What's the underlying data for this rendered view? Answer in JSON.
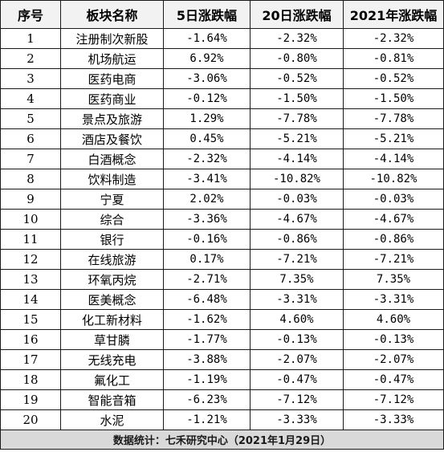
{
  "table": {
    "headers": [
      "序号",
      "板块名称",
      "5日涨跌幅",
      "20日涨跌幅",
      "2021年涨跌幅"
    ],
    "rows": [
      [
        "1",
        "注册制次新股",
        "-1.64%",
        "-2.32%",
        "-2.32%"
      ],
      [
        "2",
        "机场航运",
        "6.92%",
        "-0.80%",
        "-0.81%"
      ],
      [
        "3",
        "医药电商",
        "-3.06%",
        "-0.52%",
        "-0.52%"
      ],
      [
        "4",
        "医药商业",
        "-0.12%",
        "-1.50%",
        "-1.50%"
      ],
      [
        "5",
        "景点及旅游",
        "1.29%",
        "-7.78%",
        "-7.78%"
      ],
      [
        "6",
        "酒店及餐饮",
        "0.45%",
        "-5.21%",
        "-5.21%"
      ],
      [
        "7",
        "白酒概念",
        "-2.32%",
        "-4.14%",
        "-4.14%"
      ],
      [
        "8",
        "饮料制造",
        "-3.41%",
        "-10.82%",
        "-10.82%"
      ],
      [
        "9",
        "宁夏",
        "2.02%",
        "-0.03%",
        "-0.03%"
      ],
      [
        "10",
        "综合",
        "-3.36%",
        "-4.67%",
        "-4.67%"
      ],
      [
        "11",
        "银行",
        "-0.16%",
        "-0.86%",
        "-0.86%"
      ],
      [
        "12",
        "在线旅游",
        "0.17%",
        "-7.21%",
        "-7.21%"
      ],
      [
        "13",
        "环氧丙烷",
        "-2.71%",
        "7.35%",
        "7.35%"
      ],
      [
        "14",
        "医美概念",
        "-6.48%",
        "-3.31%",
        "-3.31%"
      ],
      [
        "15",
        "化工新材料",
        "-1.62%",
        "4.60%",
        "4.60%"
      ],
      [
        "16",
        "草甘膦",
        "-1.77%",
        "-0.13%",
        "-0.13%"
      ],
      [
        "17",
        "无线充电",
        "-3.88%",
        "-2.07%",
        "-2.07%"
      ],
      [
        "18",
        "氟化工",
        "-1.19%",
        "-0.47%",
        "-0.47%"
      ],
      [
        "19",
        "智能音箱",
        "-6.23%",
        "-7.12%",
        "-7.12%"
      ],
      [
        "20",
        "水泥",
        "-1.21%",
        "-3.33%",
        "-3.33%"
      ]
    ],
    "footer": "数据统计：七禾研究中心（2021年1月29日）"
  }
}
